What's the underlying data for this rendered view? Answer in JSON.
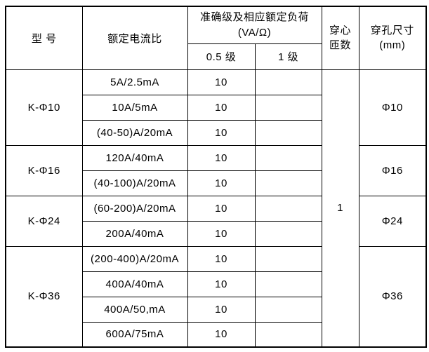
{
  "table": {
    "colors": {
      "border": "#000000",
      "text": "#000000",
      "background": "#ffffff"
    },
    "header": {
      "model": "型 号",
      "ratio": "额定电流比",
      "accuracy_line1": "准确级及相应额定负荷",
      "accuracy_line2": "(VA/Ω)",
      "class_05": "0.5 级",
      "class_1": "1 级",
      "turns_line1": "穿心",
      "turns_line2": "匝数",
      "hole_line1": "穿孔尺寸",
      "hole_line2": "(mm)"
    },
    "turns_value": "1",
    "groups": [
      {
        "model": "K-Φ10",
        "hole": "Φ10",
        "rows": [
          {
            "ratio": "5A/2.5mA",
            "class_05": "10",
            "class_1": ""
          },
          {
            "ratio": "10A/5mA",
            "class_05": "10",
            "class_1": ""
          },
          {
            "ratio": "(40-50)A/20mA",
            "class_05": "10",
            "class_1": ""
          }
        ]
      },
      {
        "model": "K-Φ16",
        "hole": "Φ16",
        "rows": [
          {
            "ratio": "120A/40mA",
            "class_05": "10",
            "class_1": ""
          },
          {
            "ratio": "(40-100)A/20mA",
            "class_05": "10",
            "class_1": ""
          }
        ]
      },
      {
        "model": "K-Φ24",
        "hole": "Φ24",
        "rows": [
          {
            "ratio": "(60-200)A/20mA",
            "class_05": "10",
            "class_1": ""
          },
          {
            "ratio": "200A/40mA",
            "class_05": "10",
            "class_1": ""
          }
        ]
      },
      {
        "model": "K-Φ36",
        "hole": "Φ36",
        "rows": [
          {
            "ratio": "(200-400)A/20mA",
            "class_05": "10",
            "class_1": ""
          },
          {
            "ratio": "400A/40mA",
            "class_05": "10",
            "class_1": ""
          },
          {
            "ratio": "400A/50,mA",
            "class_05": "10",
            "class_1": ""
          },
          {
            "ratio": "600A/75mA",
            "class_05": "10",
            "class_1": ""
          }
        ]
      }
    ]
  }
}
